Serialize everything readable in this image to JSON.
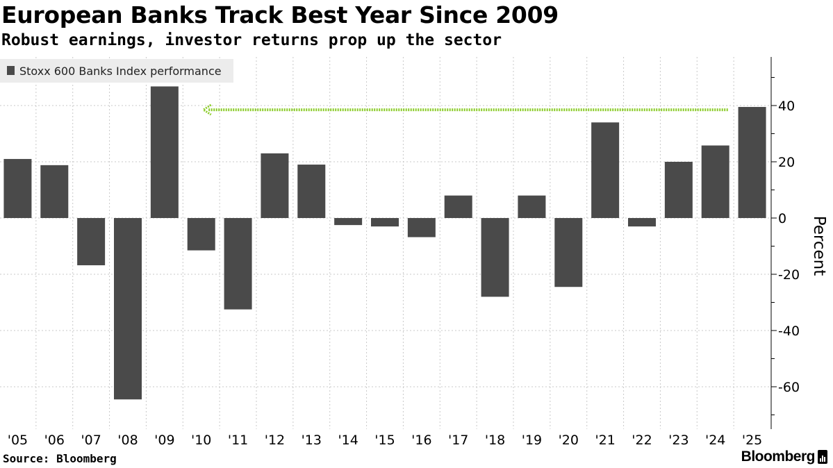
{
  "title": "European Banks Track Best Year Since 2009",
  "subtitle": "Robust earnings, investor returns prop up the sector",
  "source": "Source: Bloomberg",
  "brand": "Bloomberg",
  "colors": {
    "bar": "#4a4a4a",
    "arrow": "#8ccc2a",
    "grid": "#c8c8c8",
    "legend_bg": "#ececec"
  },
  "chart_data": {
    "type": "bar",
    "title": "European Banks Track Best Year Since 2009",
    "subtitle": "Robust earnings, investor returns prop up the sector",
    "categories": [
      "'05",
      "'06",
      "'07",
      "'08",
      "'09",
      "'10",
      "'11",
      "'12",
      "'13",
      "'14",
      "'15",
      "'16",
      "'17",
      "'18",
      "'19",
      "'20",
      "'21",
      "'22",
      "'23",
      "'24",
      "'25"
    ],
    "series": [
      {
        "name": "Stoxx 600 Banks Index performance",
        "values": [
          21,
          18.8,
          -16.8,
          -64.5,
          46.8,
          -11.5,
          -32.5,
          23,
          19,
          -2.5,
          -3,
          -6.8,
          8,
          -28,
          8,
          -24.5,
          34,
          -3,
          20,
          25.8,
          39.5
        ]
      }
    ],
    "xlabel": "",
    "ylabel": "Percent",
    "ylim": [
      -75,
      57
    ],
    "yticks": [
      40,
      20,
      0,
      -20,
      -40,
      -60
    ],
    "ytick_labels": [
      "40",
      "20",
      "0",
      "-20",
      "-40",
      "-60"
    ],
    "grid": true,
    "legend": "top-left",
    "annotation": {
      "type": "arrow",
      "from_category": "'24",
      "to_category": "'10",
      "y": 38.5
    }
  }
}
